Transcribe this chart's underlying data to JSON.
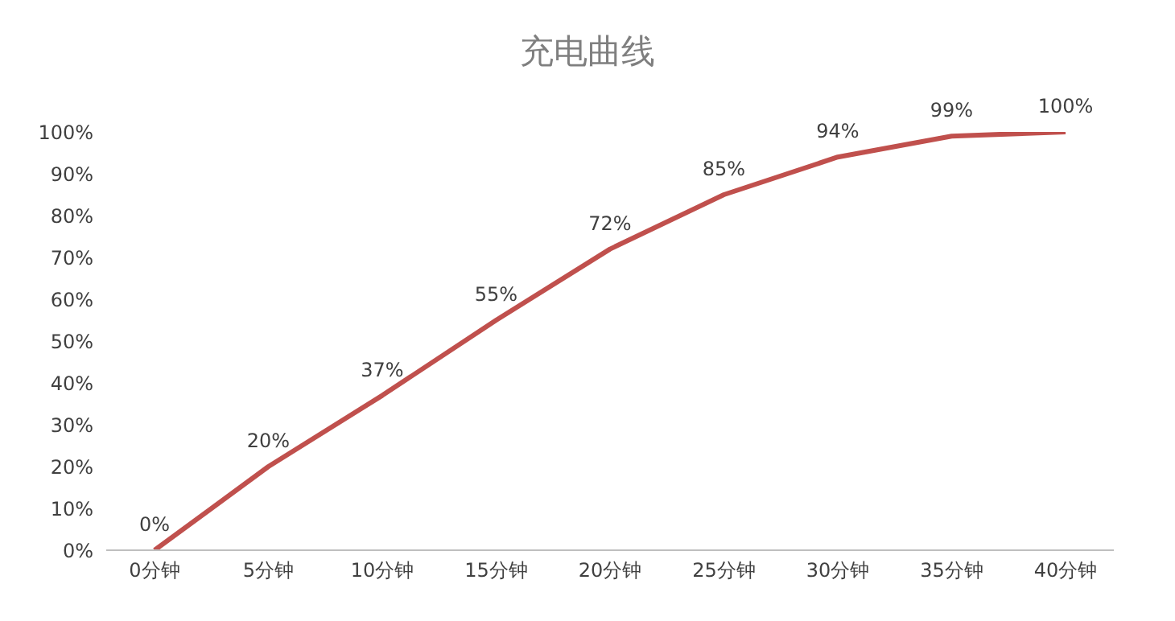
{
  "chart_data": {
    "type": "line",
    "title": "充电曲线",
    "categories": [
      "0分钟",
      "5分钟",
      "10分钟",
      "15分钟",
      "20分钟",
      "25分钟",
      "30分钟",
      "35分钟",
      "40分钟"
    ],
    "series": [
      {
        "color": "#c0504d",
        "values": [
          0,
          20,
          37,
          55,
          72,
          85,
          94,
          99,
          100
        ],
        "value_labels": [
          "0%",
          "20%",
          "37%",
          "55%",
          "72%",
          "85%",
          "94%",
          "99%",
          "100%"
        ]
      }
    ],
    "ylim": [
      0,
      100
    ],
    "yticks": [
      {
        "value": 0,
        "label": "0%"
      },
      {
        "value": 10,
        "label": "10%"
      },
      {
        "value": 20,
        "label": "20%"
      },
      {
        "value": 30,
        "label": "30%"
      },
      {
        "value": 40,
        "label": "40%"
      },
      {
        "value": 50,
        "label": "50%"
      },
      {
        "value": 60,
        "label": "60%"
      },
      {
        "value": 70,
        "label": "70%"
      },
      {
        "value": 80,
        "label": "80%"
      },
      {
        "value": 90,
        "label": "90%"
      },
      {
        "value": 100,
        "label": "100%"
      }
    ],
    "marker": "none",
    "line_style": "solid"
  }
}
